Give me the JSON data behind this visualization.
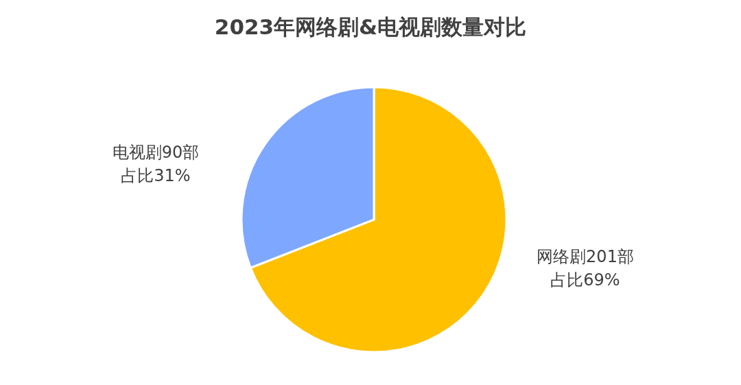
{
  "chart_data": {
    "type": "pie",
    "title": "2023年网络剧&电视剧数量对比",
    "categories": [
      "网络剧",
      "电视剧"
    ],
    "values": [
      201,
      90
    ],
    "colors": [
      "#ffc000",
      "#7ea7ff"
    ],
    "value_labels": [
      "201部",
      "90部"
    ],
    "annotations": [
      "占比69%",
      "占比31%"
    ],
    "legend": false
  }
}
